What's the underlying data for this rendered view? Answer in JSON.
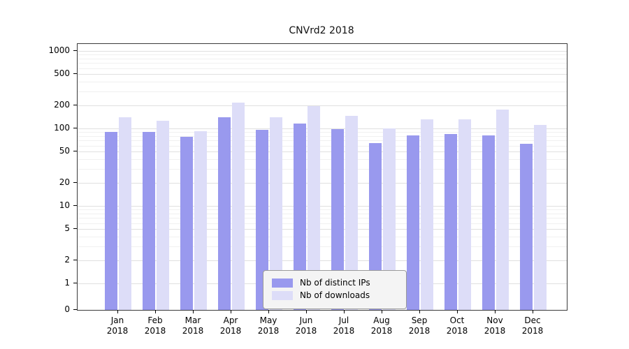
{
  "title": "CNVrd2 2018",
  "colors": {
    "ips": "#9999ee",
    "downloads": "#ddddf8",
    "grid_major": "#e0e0e0",
    "grid_minor": "#f0f0f0",
    "axis": "#000000"
  },
  "legend": {
    "items": [
      {
        "label": "Nb of distinct IPs",
        "series": "ips"
      },
      {
        "label": "Nb of downloads",
        "series": "downloads"
      }
    ]
  },
  "chart_data": {
    "type": "bar",
    "title": "CNVrd2 2018",
    "categories": [
      "Jan",
      "Feb",
      "Mar",
      "Apr",
      "May",
      "Jun",
      "Jul",
      "Aug",
      "Sep",
      "Oct",
      "Nov",
      "Dec"
    ],
    "year": "2018",
    "series": [
      {
        "name": "Nb of distinct IPs",
        "key": "ips",
        "values": [
          90,
          90,
          78,
          140,
          95,
          115,
          97,
          65,
          82,
          85,
          82,
          63
        ]
      },
      {
        "name": "Nb of downloads",
        "key": "downloads",
        "values": [
          140,
          125,
          92,
          215,
          140,
          195,
          145,
          100,
          130,
          130,
          175,
          110
        ]
      }
    ],
    "yscale": "log",
    "yticks": [
      0,
      1,
      2,
      5,
      10,
      20,
      50,
      100,
      200,
      500,
      1000
    ],
    "ylim": [
      0,
      1400
    ],
    "grid": true,
    "legend_position": "lower center"
  }
}
